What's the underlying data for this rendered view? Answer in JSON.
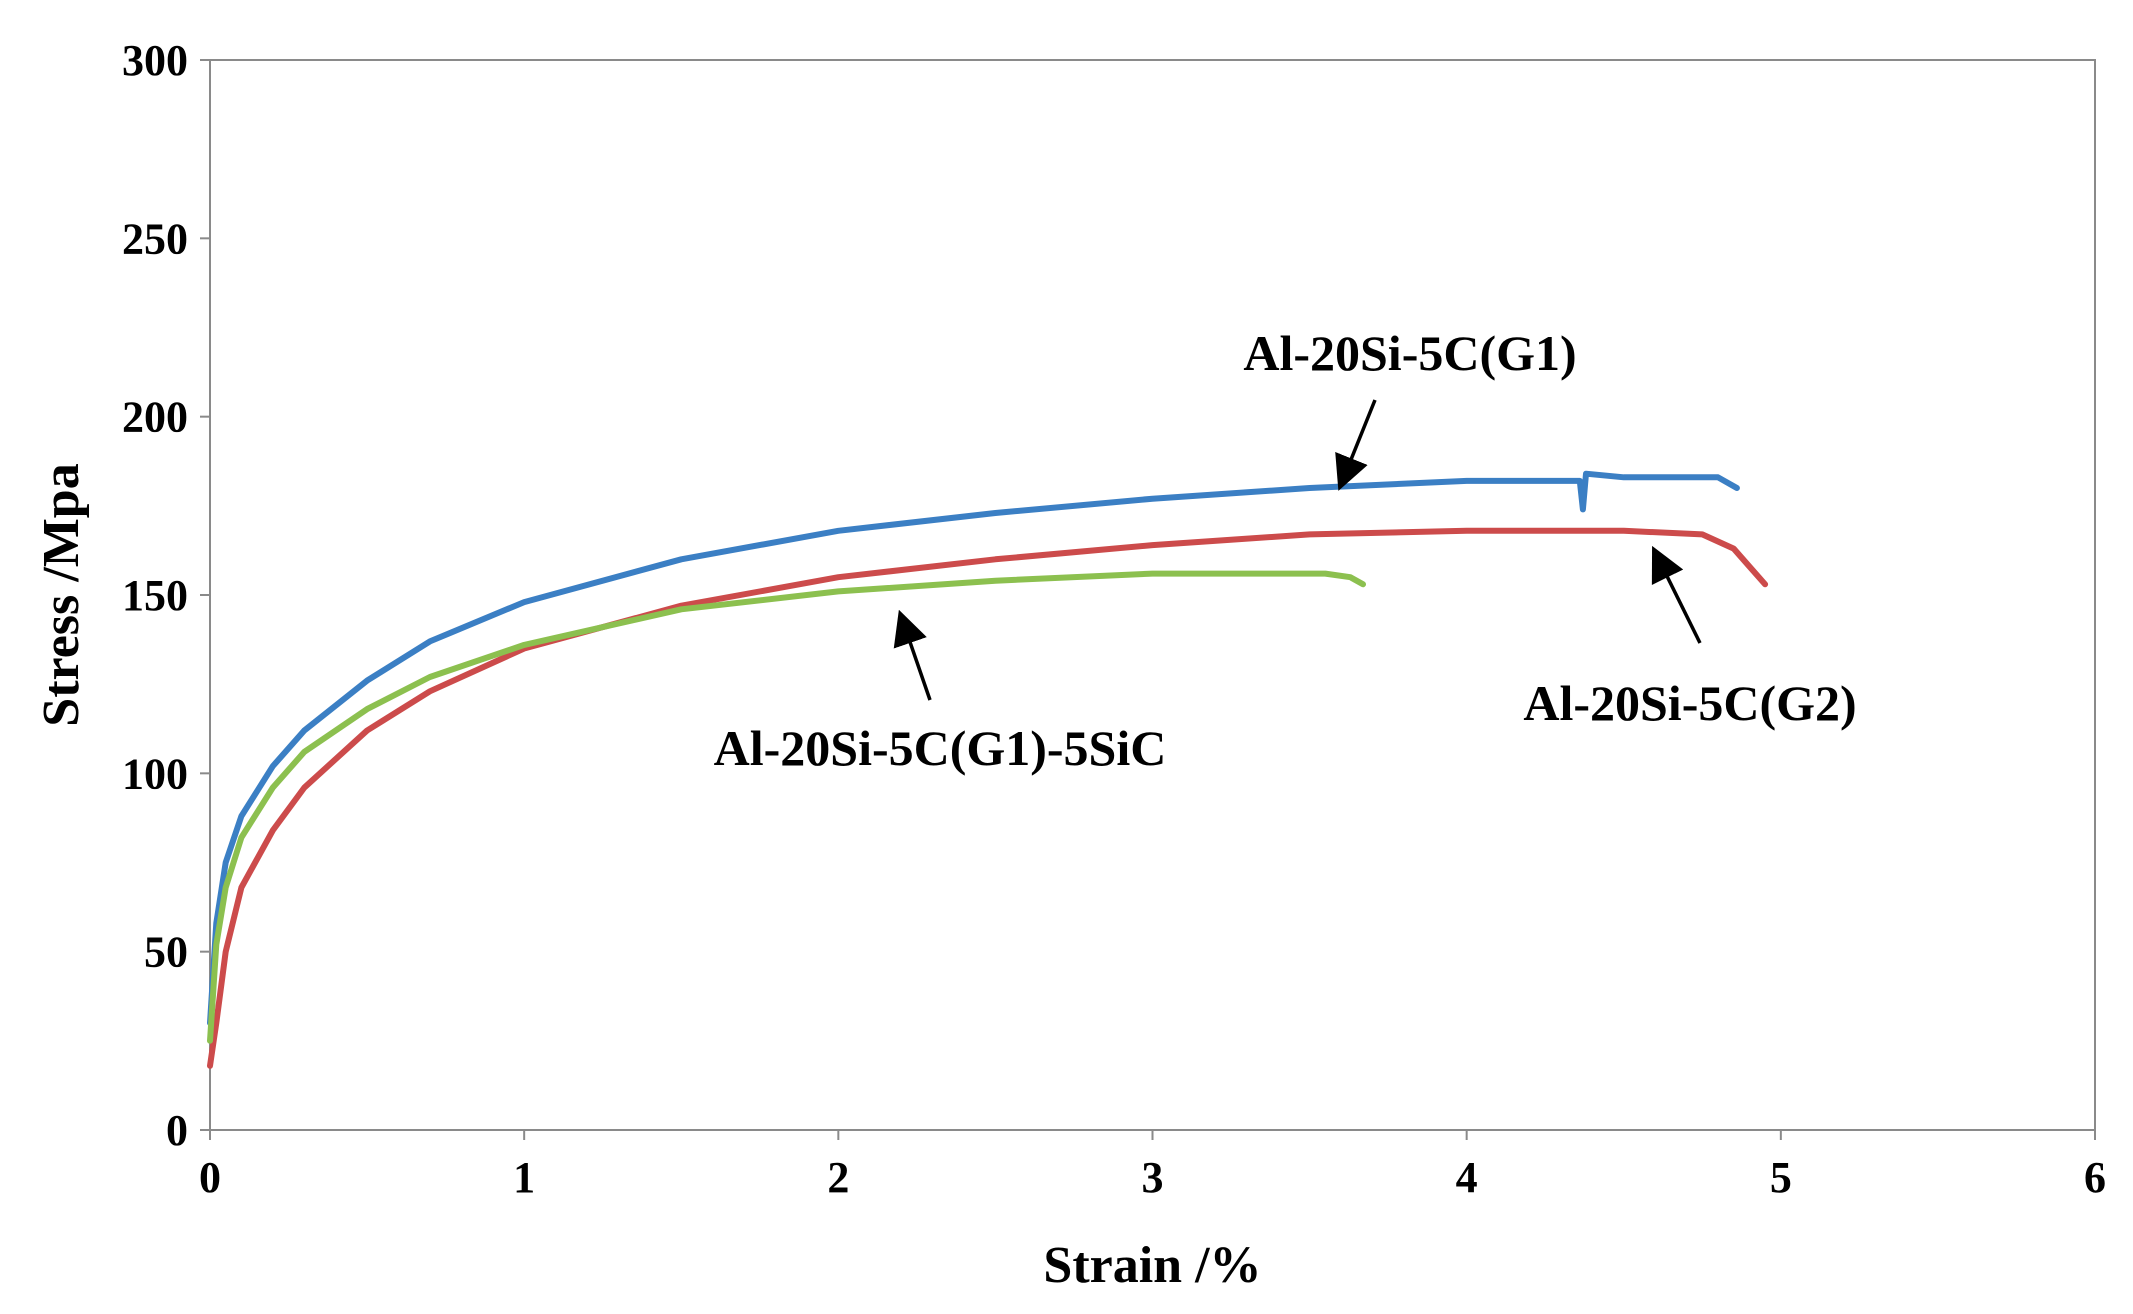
{
  "chart_data": {
    "type": "line",
    "title": "",
    "xlabel": "Strain /%",
    "ylabel": "Stress /Mpa",
    "xlim": [
      0,
      6
    ],
    "ylim": [
      0,
      300
    ],
    "x_ticks": [
      0,
      1,
      2,
      3,
      4,
      5,
      6
    ],
    "y_ticks": [
      0,
      50,
      100,
      150,
      200,
      250,
      300
    ],
    "x_tick_labels": [
      "0",
      "1",
      "2",
      "3",
      "4",
      "5",
      "6"
    ],
    "y_tick_labels": [
      "0",
      "50",
      "100",
      "150",
      "200",
      "250",
      "300"
    ],
    "grid": false,
    "legend": "none (series labelled by arrow annotations)",
    "series": [
      {
        "name": "Al-20Si-5C(G1)",
        "color": "#3b7fc4",
        "x": [
          0,
          0.02,
          0.05,
          0.1,
          0.2,
          0.3,
          0.5,
          0.7,
          1.0,
          1.5,
          2.0,
          2.5,
          3.0,
          3.5,
          4.0,
          4.36,
          4.37,
          4.38,
          4.5,
          4.7,
          4.8,
          4.86
        ],
        "y": [
          30,
          58,
          75,
          88,
          102,
          112,
          126,
          137,
          148,
          160,
          168,
          173,
          177,
          180,
          182,
          182,
          174,
          184,
          183,
          183,
          183,
          180
        ]
      },
      {
        "name": "Al-20Si-5C(G2)",
        "color": "#cc4b4b",
        "x": [
          0,
          0.02,
          0.05,
          0.1,
          0.2,
          0.3,
          0.5,
          0.7,
          1.0,
          1.5,
          2.0,
          2.5,
          3.0,
          3.5,
          4.0,
          4.5,
          4.75,
          4.85,
          4.9,
          4.95
        ],
        "y": [
          18,
          30,
          50,
          68,
          84,
          96,
          112,
          123,
          135,
          147,
          155,
          160,
          164,
          167,
          168,
          168,
          167,
          163,
          158,
          153
        ]
      },
      {
        "name": "Al-20Si-5C(G1)-5SiC",
        "color": "#8cc04f",
        "x": [
          0,
          0.02,
          0.05,
          0.1,
          0.2,
          0.3,
          0.5,
          0.7,
          1.0,
          1.5,
          2.0,
          2.5,
          3.0,
          3.4,
          3.55,
          3.63,
          3.67
        ],
        "y": [
          25,
          52,
          68,
          82,
          96,
          106,
          118,
          127,
          136,
          146,
          151,
          154,
          156,
          156,
          156,
          155,
          153
        ]
      }
    ],
    "annotations": [
      {
        "text": "Al-20Si-5C(G1)",
        "series": "Al-20Si-5C(G1)",
        "arrow_to": [
          3.6,
          181
        ]
      },
      {
        "text": "Al-20Si-5C(G2)",
        "series": "Al-20Si-5C(G2)",
        "arrow_to": [
          4.6,
          162
        ]
      },
      {
        "text": "Al-20Si-5C(G1)-5SiC",
        "series": "Al-20Si-5C(G1)-5SiC",
        "arrow_to": [
          2.2,
          144
        ]
      }
    ]
  }
}
